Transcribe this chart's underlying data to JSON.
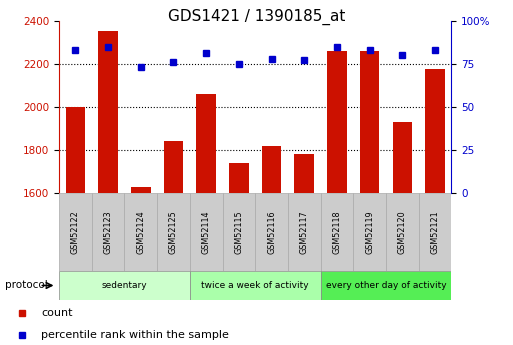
{
  "title": "GDS1421 / 1390185_at",
  "samples": [
    "GSM52122",
    "GSM52123",
    "GSM52124",
    "GSM52125",
    "GSM52114",
    "GSM52115",
    "GSM52116",
    "GSM52117",
    "GSM52118",
    "GSM52119",
    "GSM52120",
    "GSM52121"
  ],
  "counts": [
    2000,
    2350,
    1630,
    1840,
    2060,
    1740,
    1820,
    1780,
    2260,
    2260,
    1930,
    2175
  ],
  "percentiles": [
    83,
    85,
    73,
    76,
    81,
    75,
    78,
    77,
    85,
    83,
    80,
    83
  ],
  "group_colors": [
    "#ccffcc",
    "#aaffaa",
    "#55ee55"
  ],
  "group_labels": [
    "sedentary",
    "twice a week of activity",
    "every other day of activity"
  ],
  "group_ranges": [
    [
      0,
      4
    ],
    [
      4,
      8
    ],
    [
      8,
      12
    ]
  ],
  "ylim_left": [
    1600,
    2400
  ],
  "ylim_right": [
    0,
    100
  ],
  "yticks_left": [
    1600,
    1800,
    2000,
    2200,
    2400
  ],
  "yticks_right": [
    0,
    25,
    50,
    75,
    100
  ],
  "bar_color": "#cc1100",
  "dot_color": "#0000cc",
  "bar_width": 0.6,
  "tick_label_color_left": "#cc1100",
  "tick_label_color_right": "#0000cc",
  "title_fontsize": 11,
  "cell_color": "#cccccc",
  "cell_edge_color": "#aaaaaa",
  "protocol_label": "protocol",
  "legend_labels": [
    "count",
    "percentile rank within the sample"
  ]
}
